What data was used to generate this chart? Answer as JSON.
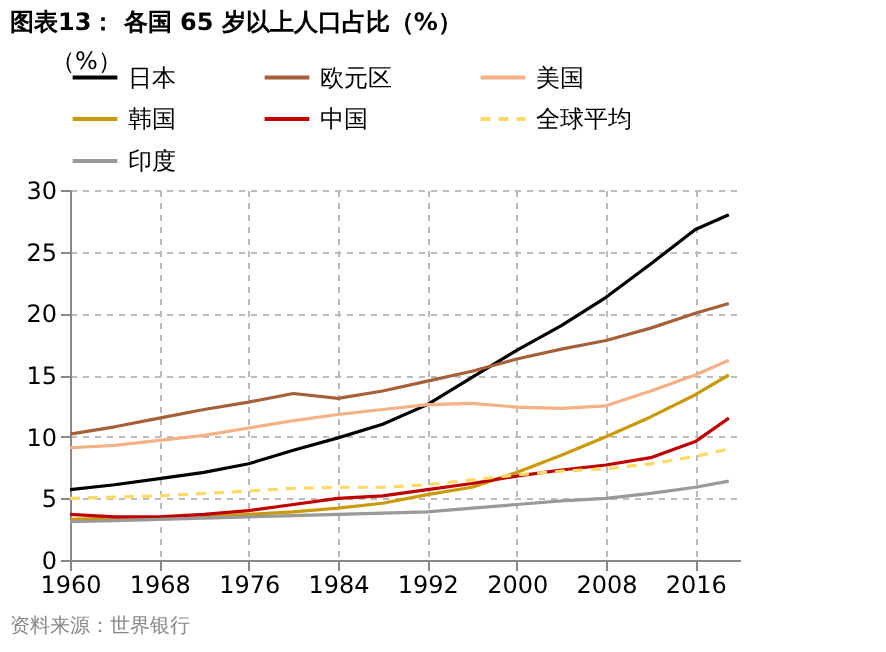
{
  "chart_data": {
    "type": "line",
    "title": "图表13：  各国 65 岁以上人口占比（%）",
    "ylabel": "（%）",
    "annotations": [
      "资料来源：世界银行"
    ],
    "x": [
      1960,
      1964,
      1968,
      1972,
      1976,
      1980,
      1984,
      1988,
      1992,
      1996,
      2000,
      2004,
      2008,
      2012,
      2016,
      2019
    ],
    "series": [
      {
        "name": "日本",
        "color": "#000000",
        "values": [
          5.7,
          6.1,
          6.6,
          7.1,
          7.8,
          8.9,
          9.9,
          11.0,
          12.6,
          14.8,
          17.0,
          19.0,
          21.3,
          24.0,
          26.8,
          28.0
        ]
      },
      {
        "name": "欧元区",
        "color": "#a5603a",
        "values": [
          10.2,
          10.8,
          11.5,
          12.2,
          12.8,
          13.5,
          13.1,
          13.7,
          14.5,
          15.3,
          16.3,
          17.1,
          17.8,
          18.8,
          20.0,
          20.8
        ]
      },
      {
        "name": "美国",
        "color": "#f4b183",
        "values": [
          9.1,
          9.3,
          9.7,
          10.1,
          10.7,
          11.3,
          11.8,
          12.2,
          12.6,
          12.7,
          12.4,
          12.3,
          12.5,
          13.7,
          15.0,
          16.2
        ]
      },
      {
        "name": "韩国",
        "color": "#c99a06",
        "values": [
          3.3,
          3.4,
          3.4,
          3.5,
          3.7,
          3.9,
          4.2,
          4.6,
          5.3,
          5.9,
          7.1,
          8.5,
          10.0,
          11.6,
          13.4,
          15.0
        ]
      },
      {
        "name": "中国",
        "color": "#c00000",
        "values": [
          3.7,
          3.5,
          3.5,
          3.7,
          4.0,
          4.5,
          5.0,
          5.2,
          5.7,
          6.2,
          6.8,
          7.3,
          7.7,
          8.3,
          9.6,
          11.5
        ]
      },
      {
        "name": "全球平均",
        "color": "#ffd966",
        "line_style": "dashed",
        "values": [
          5.0,
          5.1,
          5.2,
          5.4,
          5.6,
          5.8,
          5.9,
          5.9,
          6.1,
          6.5,
          6.9,
          7.2,
          7.4,
          7.8,
          8.4,
          9.0
        ]
      },
      {
        "name": "印度",
        "color": "#999999",
        "values": [
          3.1,
          3.2,
          3.3,
          3.4,
          3.5,
          3.6,
          3.7,
          3.8,
          3.9,
          4.2,
          4.5,
          4.8,
          5.0,
          5.4,
          5.9,
          6.4
        ]
      }
    ],
    "xlim": [
      1960,
      2020
    ],
    "xticks": [
      1960,
      1968,
      1976,
      1984,
      1992,
      2000,
      2008,
      2016
    ],
    "ylim": [
      0,
      30
    ],
    "yticks": [
      0,
      5,
      10,
      15,
      20,
      25,
      30
    ],
    "grid": true,
    "legend": "top",
    "marker": "none"
  }
}
